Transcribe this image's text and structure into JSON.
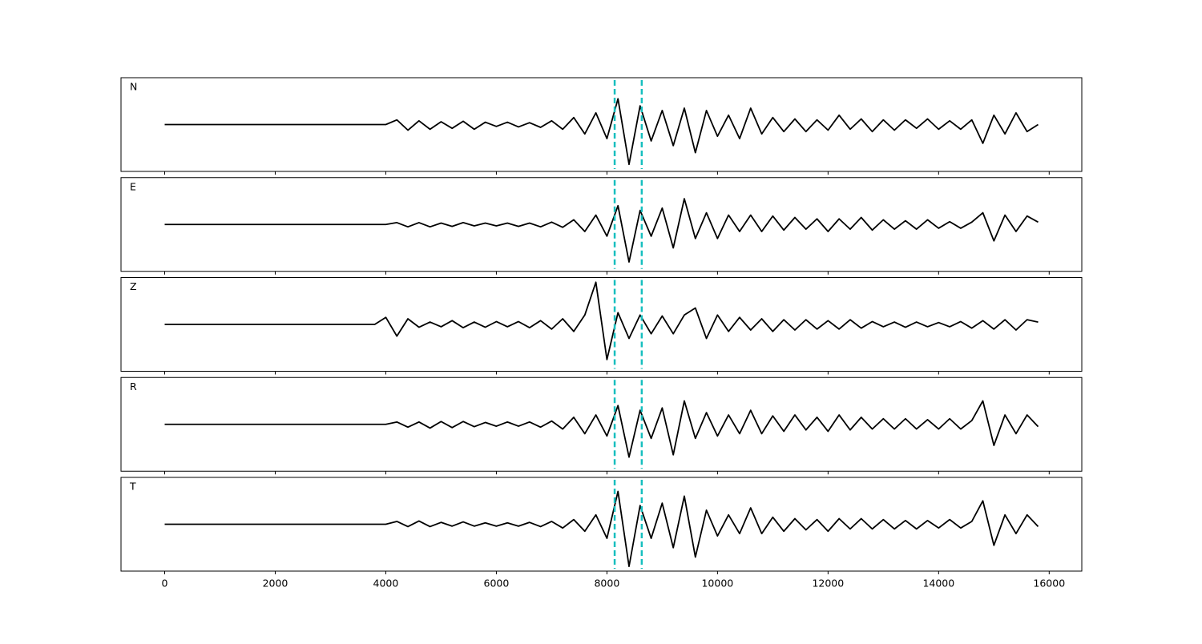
{
  "chart_data": {
    "type": "line",
    "x": [
      0,
      200,
      400,
      600,
      800,
      1000,
      1200,
      1400,
      1600,
      1800,
      2000,
      2200,
      2400,
      2600,
      2800,
      3000,
      3200,
      3400,
      3600,
      3800,
      4000,
      4200,
      4400,
      4600,
      4800,
      5000,
      5200,
      5400,
      5600,
      5800,
      6000,
      6200,
      6400,
      6600,
      6800,
      7000,
      7200,
      7400,
      7600,
      7800,
      8000,
      8200,
      8400,
      8600,
      8800,
      9000,
      9200,
      9400,
      9600,
      9800,
      10000,
      10200,
      10400,
      10600,
      10800,
      11000,
      11200,
      11400,
      11600,
      11800,
      12000,
      12200,
      12400,
      12600,
      12800,
      13000,
      13200,
      13400,
      13600,
      13800,
      14000,
      14200,
      14400,
      14600,
      14800,
      15000,
      15200,
      15400,
      15600,
      15800
    ],
    "series": [
      {
        "name": "N",
        "color": "#000000",
        "values": [
          0,
          0,
          0,
          0,
          0,
          0,
          0,
          0,
          0,
          0,
          0,
          0,
          0,
          0,
          0,
          0,
          0,
          0,
          0,
          0,
          0,
          0.1,
          -0.12,
          0.08,
          -0.1,
          0.06,
          -0.08,
          0.07,
          -0.1,
          0.05,
          -0.04,
          0.05,
          -0.05,
          0.04,
          -0.06,
          0.08,
          -0.1,
          0.15,
          -0.2,
          0.25,
          -0.3,
          0.55,
          -0.85,
          0.4,
          -0.35,
          0.3,
          -0.45,
          0.35,
          -0.6,
          0.3,
          -0.25,
          0.2,
          -0.3,
          0.35,
          -0.2,
          0.15,
          -0.15,
          0.12,
          -0.15,
          0.1,
          -0.12,
          0.2,
          -0.1,
          0.12,
          -0.15,
          0.1,
          -0.12,
          0.1,
          -0.08,
          0.12,
          -0.1,
          0.08,
          -0.1,
          0.1,
          -0.4,
          0.2,
          -0.2,
          0.25,
          -0.15,
          0
        ]
      },
      {
        "name": "E",
        "color": "#000000",
        "values": [
          0,
          0,
          0,
          0,
          0,
          0,
          0,
          0,
          0,
          0,
          0,
          0,
          0,
          0,
          0,
          0,
          0,
          0,
          0,
          0,
          0,
          0.04,
          -0.05,
          0.04,
          -0.05,
          0.03,
          -0.04,
          0.04,
          -0.03,
          0.03,
          -0.03,
          0.03,
          -0.04,
          0.03,
          -0.05,
          0.05,
          -0.06,
          0.1,
          -0.15,
          0.2,
          -0.25,
          0.4,
          -0.8,
          0.3,
          -0.25,
          0.35,
          -0.5,
          0.55,
          -0.3,
          0.25,
          -0.3,
          0.2,
          -0.15,
          0.2,
          -0.15,
          0.18,
          -0.12,
          0.15,
          -0.1,
          0.12,
          -0.15,
          0.12,
          -0.1,
          0.15,
          -0.12,
          0.1,
          -0.1,
          0.08,
          -0.1,
          0.1,
          -0.08,
          0.06,
          -0.08,
          0.05,
          0.25,
          -0.35,
          0.2,
          -0.15,
          0.18,
          0.05
        ]
      },
      {
        "name": "Z",
        "color": "#000000",
        "values": [
          0,
          0,
          0,
          0,
          0,
          0,
          0,
          0,
          0,
          0,
          0,
          0,
          0,
          0,
          0,
          0,
          0,
          0,
          0,
          0,
          0.15,
          -0.25,
          0.12,
          -0.06,
          0.05,
          -0.05,
          0.08,
          -0.07,
          0.05,
          -0.06,
          0.06,
          -0.05,
          0.06,
          -0.07,
          0.08,
          -0.1,
          0.12,
          -0.15,
          0.2,
          0.9,
          -0.75,
          0.25,
          -0.3,
          0.2,
          -0.2,
          0.18,
          -0.2,
          0.2,
          0.35,
          -0.3,
          0.2,
          -0.15,
          0.15,
          -0.12,
          0.12,
          -0.15,
          0.1,
          -0.12,
          0.1,
          -0.1,
          0.08,
          -0.1,
          0.1,
          -0.08,
          0.06,
          -0.05,
          0.05,
          -0.06,
          0.05,
          -0.05,
          0.04,
          -0.05,
          0.06,
          -0.08,
          0.08,
          -0.1,
          0.1,
          -0.12,
          0.1,
          0.05
        ]
      },
      {
        "name": "R",
        "color": "#000000",
        "values": [
          0,
          0,
          0,
          0,
          0,
          0,
          0,
          0,
          0,
          0,
          0,
          0,
          0,
          0,
          0,
          0,
          0,
          0,
          0,
          0,
          0,
          0.05,
          -0.06,
          0.05,
          -0.08,
          0.06,
          -0.07,
          0.06,
          -0.05,
          0.04,
          -0.04,
          0.05,
          -0.04,
          0.05,
          -0.06,
          0.07,
          -0.1,
          0.15,
          -0.2,
          0.2,
          -0.25,
          0.4,
          -0.7,
          0.3,
          -0.3,
          0.35,
          -0.65,
          0.5,
          -0.3,
          0.25,
          -0.25,
          0.2,
          -0.2,
          0.3,
          -0.2,
          0.18,
          -0.15,
          0.2,
          -0.12,
          0.15,
          -0.15,
          0.2,
          -0.12,
          0.15,
          -0.1,
          0.12,
          -0.1,
          0.12,
          -0.1,
          0.1,
          -0.1,
          0.12,
          -0.1,
          0.08,
          0.5,
          -0.45,
          0.2,
          -0.2,
          0.2,
          -0.05
        ]
      },
      {
        "name": "T",
        "color": "#000000",
        "values": [
          0,
          0,
          0,
          0,
          0,
          0,
          0,
          0,
          0,
          0,
          0,
          0,
          0,
          0,
          0,
          0,
          0,
          0,
          0,
          0,
          0,
          0.06,
          -0.05,
          0.07,
          -0.05,
          0.04,
          -0.04,
          0.05,
          -0.04,
          0.03,
          -0.04,
          0.03,
          -0.04,
          0.04,
          -0.05,
          0.06,
          -0.08,
          0.1,
          -0.15,
          0.2,
          -0.3,
          0.7,
          -0.9,
          0.4,
          -0.3,
          0.45,
          -0.5,
          0.6,
          -0.7,
          0.3,
          -0.25,
          0.2,
          -0.2,
          0.35,
          -0.2,
          0.15,
          -0.15,
          0.12,
          -0.12,
          0.1,
          -0.15,
          0.12,
          -0.1,
          0.12,
          -0.1,
          0.1,
          -0.1,
          0.08,
          -0.1,
          0.08,
          -0.08,
          0.1,
          -0.08,
          0.06,
          0.5,
          -0.45,
          0.2,
          -0.2,
          0.2,
          -0.05
        ]
      }
    ],
    "vlines": [
      8140,
      8630
    ],
    "vline_color": "#17bfbf",
    "xlim": [
      -790,
      16590
    ],
    "xticks": [
      0,
      2000,
      4000,
      6000,
      8000,
      10000,
      12000,
      14000,
      16000
    ],
    "ylim": [
      -1,
      1
    ]
  }
}
